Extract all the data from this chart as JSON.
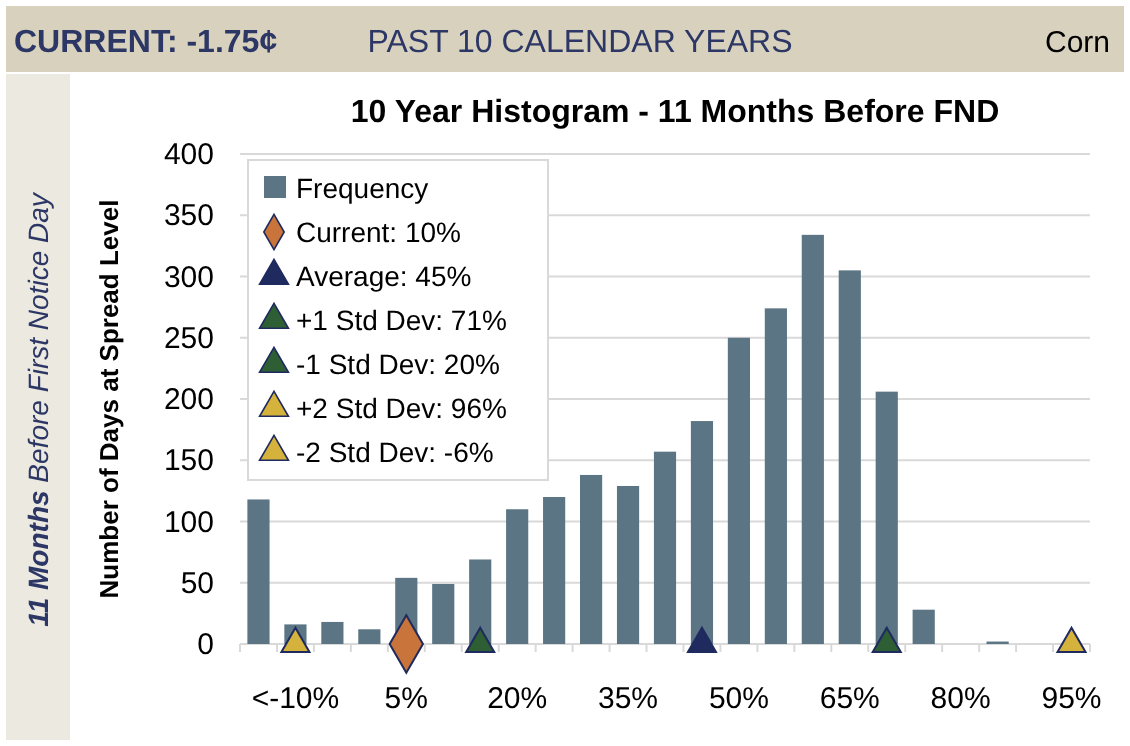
{
  "chart_data": {
    "type": "bar",
    "title": "10 Year Histogram - 11 Months Before FND",
    "ylabel": "Number of Days at Spread Level",
    "annotations": [
      "CURRENT: -1.75¢",
      "PAST 10 CALENDAR YEARS",
      "Corn",
      "11 Months Before First Notice Day"
    ],
    "categories": [
      null,
      "<-10%",
      null,
      null,
      "5%",
      null,
      null,
      "20%",
      null,
      null,
      "35%",
      null,
      null,
      "50%",
      null,
      null,
      "65%",
      null,
      null,
      "80%",
      null,
      null,
      "95%"
    ],
    "series": [
      {
        "name": "Frequency",
        "type": "bar",
        "color": "#5b7584",
        "values": [
          118,
          16,
          18,
          12,
          54,
          49,
          69,
          110,
          120,
          138,
          129,
          157,
          182,
          250,
          274,
          334,
          305,
          206,
          28,
          0,
          2,
          0,
          0
        ]
      },
      {
        "name": "Current: 10%",
        "type": "scatter",
        "marker": "diamond",
        "color": "#c8743a",
        "values": [
          null,
          null,
          null,
          null,
          0,
          null,
          null,
          null,
          null,
          null,
          null,
          null,
          null,
          null,
          null,
          null,
          null,
          null,
          null,
          null,
          null,
          null,
          null
        ]
      },
      {
        "name": "Average: 45%",
        "type": "scatter",
        "marker": "triangle",
        "color": "#1f2a5e",
        "values": [
          null,
          null,
          null,
          null,
          null,
          null,
          null,
          null,
          null,
          null,
          null,
          null,
          0,
          null,
          null,
          null,
          null,
          null,
          null,
          null,
          null,
          null,
          null
        ]
      },
      {
        "name": "+1 Std Dev: 71%",
        "type": "scatter",
        "marker": "triangle",
        "color": "#2e5e34",
        "values": [
          null,
          null,
          null,
          null,
          null,
          null,
          null,
          null,
          null,
          null,
          null,
          null,
          null,
          null,
          null,
          null,
          null,
          0,
          null,
          null,
          null,
          null,
          null
        ]
      },
      {
        "name": "-1 Std Dev: 20%",
        "type": "scatter",
        "marker": "triangle",
        "color": "#2e5e34",
        "values": [
          null,
          null,
          null,
          null,
          null,
          null,
          0,
          null,
          null,
          null,
          null,
          null,
          null,
          null,
          null,
          null,
          null,
          null,
          null,
          null,
          null,
          null,
          null
        ]
      },
      {
        "name": "+2 Std Dev: 96%",
        "type": "scatter",
        "marker": "triangle",
        "color": "#d4b23c",
        "values": [
          null,
          null,
          null,
          null,
          null,
          null,
          null,
          null,
          null,
          null,
          null,
          null,
          null,
          null,
          null,
          null,
          null,
          null,
          null,
          null,
          null,
          null,
          0
        ]
      },
      {
        "name": "-2 Std Dev: -6%",
        "type": "scatter",
        "marker": "triangle",
        "color": "#d4b23c",
        "values": [
          null,
          0,
          null,
          null,
          null,
          null,
          null,
          null,
          null,
          null,
          null,
          null,
          null,
          null,
          null,
          null,
          null,
          null,
          null,
          null,
          null,
          null,
          null
        ]
      }
    ],
    "ylim": [
      0,
      400
    ],
    "yticks": [
      0,
      50,
      100,
      150,
      200,
      250,
      300,
      350,
      400
    ],
    "grid": "y",
    "legend": "top left"
  }
}
